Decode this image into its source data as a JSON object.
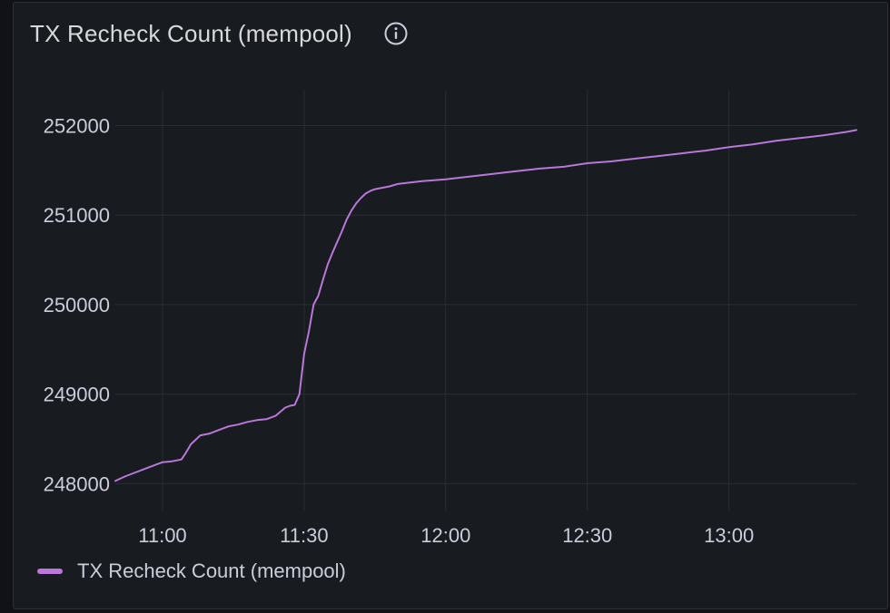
{
  "panel": {
    "title": "TX Recheck Count (mempool)",
    "info_icon": "info-circle-icon"
  },
  "colors": {
    "background": "#181b1f",
    "grid": "#2a2d33",
    "series": "#b877d9",
    "text": "#ccccdc"
  },
  "chart_data": {
    "type": "line",
    "title": "TX Recheck Count (mempool)",
    "xlabel": "",
    "ylabel": "",
    "x_ticks": [
      "11:00",
      "11:30",
      "12:00",
      "12:30",
      "13:00"
    ],
    "y_ticks": [
      248000,
      249000,
      250000,
      251000,
      252000
    ],
    "xlim": [
      "10:50",
      "13:27"
    ],
    "ylim": [
      247700,
      252400
    ],
    "grid": true,
    "legend_position": "bottom-left",
    "series": [
      {
        "name": "TX Recheck Count (mempool)",
        "x": [
          "10:50",
          "10:52",
          "10:54",
          "10:56",
          "10:58",
          "11:00",
          "11:02",
          "11:04",
          "11:05",
          "11:06",
          "11:08",
          "11:10",
          "11:12",
          "11:14",
          "11:16",
          "11:18",
          "11:20",
          "11:22",
          "11:24",
          "11:26",
          "11:27",
          "11:28",
          "11:29",
          "11:30",
          "11:31",
          "11:32",
          "11:33",
          "11:34",
          "11:35",
          "11:36",
          "11:37",
          "11:38",
          "11:39",
          "11:40",
          "11:41",
          "11:42",
          "11:43",
          "11:44",
          "11:45",
          "11:46",
          "11:47",
          "11:48",
          "11:50",
          "11:55",
          "12:00",
          "12:05",
          "12:10",
          "12:15",
          "12:20",
          "12:25",
          "12:30",
          "12:35",
          "12:40",
          "12:45",
          "12:50",
          "12:55",
          "13:00",
          "13:05",
          "13:10",
          "13:15",
          "13:20",
          "13:25",
          "13:27"
        ],
        "values": [
          248030,
          248080,
          248120,
          248160,
          248200,
          248240,
          248250,
          248270,
          248350,
          248440,
          248540,
          248560,
          248600,
          248640,
          248660,
          248690,
          248710,
          248720,
          248760,
          248850,
          248870,
          248880,
          249000,
          249450,
          249700,
          250000,
          250100,
          250280,
          250450,
          250580,
          250700,
          250820,
          250950,
          251050,
          251130,
          251190,
          251240,
          251270,
          251290,
          251300,
          251310,
          251320,
          251350,
          251380,
          251400,
          251430,
          251460,
          251490,
          251520,
          251540,
          251580,
          251600,
          251630,
          251660,
          251690,
          251720,
          251760,
          251790,
          251830,
          251860,
          251890,
          251930,
          251950
        ]
      }
    ]
  }
}
